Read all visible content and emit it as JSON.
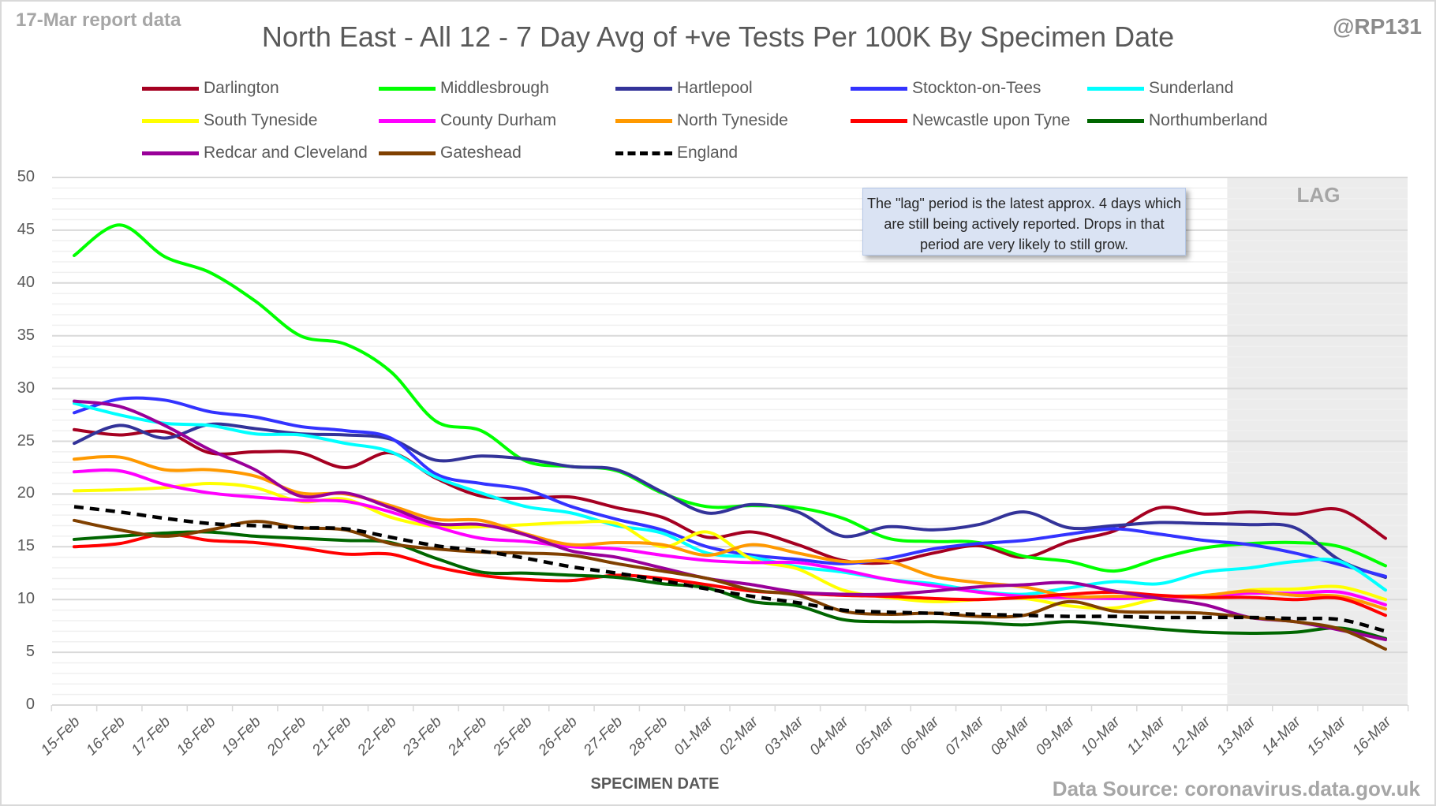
{
  "header": {
    "report_date": "17-Mar report data",
    "handle": "@RP131",
    "source": "Data Source: coronavirus.data.gov.uk"
  },
  "annotation": {
    "note": "The \"lag\" period is the latest approx. 4 days which are still being actively reported. Drops in that period are very likely to still grow.",
    "lag_label": "LAG",
    "lag_start": "13-Mar",
    "lag_end": "16-Mar"
  },
  "chart_data": {
    "type": "line",
    "title": "North East - All 12 - 7 Day Avg of +ve Tests Per 100K By Specimen Date",
    "xlabel": "SPECIMEN DATE",
    "ylabel": "",
    "ylim": [
      0,
      50
    ],
    "yticks": [
      "0",
      "5",
      "10",
      "15",
      "20",
      "25",
      "30",
      "35",
      "40",
      "45",
      "50"
    ],
    "grid": true,
    "legend_position": "top",
    "categories": [
      "15-Feb",
      "16-Feb",
      "17-Feb",
      "18-Feb",
      "19-Feb",
      "20-Feb",
      "21-Feb",
      "22-Feb",
      "23-Feb",
      "24-Feb",
      "25-Feb",
      "26-Feb",
      "27-Feb",
      "28-Feb",
      "01-Mar",
      "02-Mar",
      "03-Mar",
      "04-Mar",
      "05-Mar",
      "06-Mar",
      "07-Mar",
      "08-Mar",
      "09-Mar",
      "10-Mar",
      "11-Mar",
      "12-Mar",
      "13-Mar",
      "14-Mar",
      "15-Mar",
      "16-Mar"
    ],
    "series": [
      {
        "name": "Darlington",
        "color": "#a50021",
        "dashed": false,
        "values": [
          26.1,
          25.6,
          25.9,
          23.9,
          24.0,
          23.9,
          22.5,
          23.9,
          21.5,
          19.8,
          19.6,
          19.7,
          18.7,
          17.8,
          15.9,
          16.4,
          15.2,
          13.7,
          13.5,
          14.4,
          15.1,
          14.0,
          15.5,
          16.5,
          18.7,
          18.1,
          18.3,
          18.1,
          18.5,
          15.8
        ]
      },
      {
        "name": "Middlesbrough",
        "color": "#00ff00",
        "dashed": false,
        "values": [
          42.6,
          45.5,
          42.5,
          41.0,
          38.3,
          35.0,
          34.2,
          31.6,
          26.9,
          26.0,
          23.1,
          22.6,
          22.2,
          20.1,
          18.8,
          18.9,
          18.7,
          17.7,
          15.8,
          15.5,
          15.4,
          14.1,
          13.6,
          12.7,
          13.9,
          14.9,
          15.3,
          15.4,
          15.0,
          13.2
        ]
      },
      {
        "name": "Hartlepool",
        "color": "#333399",
        "dashed": false,
        "values": [
          24.8,
          26.5,
          25.3,
          26.6,
          26.2,
          25.7,
          25.6,
          25.2,
          23.2,
          23.6,
          23.3,
          22.6,
          22.3,
          20.2,
          18.2,
          19.0,
          18.3,
          16.0,
          16.9,
          16.6,
          17.1,
          18.3,
          16.8,
          17.0,
          17.3,
          17.2,
          17.1,
          16.8,
          13.7,
          12.1
        ]
      },
      {
        "name": "Stockton-on-Tees",
        "color": "#3333ff",
        "dashed": false,
        "values": [
          27.7,
          29.0,
          28.9,
          27.8,
          27.3,
          26.4,
          26.0,
          25.3,
          21.9,
          21.0,
          20.4,
          18.8,
          17.6,
          16.6,
          15.0,
          14.2,
          13.8,
          13.4,
          13.9,
          14.8,
          15.3,
          15.6,
          16.2,
          16.7,
          16.2,
          15.6,
          15.2,
          14.4,
          13.3,
          12.2
        ]
      },
      {
        "name": "Sunderland",
        "color": "#00ffff",
        "dashed": false,
        "values": [
          28.6,
          27.5,
          26.7,
          26.5,
          25.7,
          25.6,
          24.8,
          24.0,
          21.6,
          20.1,
          18.8,
          18.2,
          17.0,
          16.3,
          14.4,
          14.0,
          13.1,
          12.6,
          11.9,
          11.5,
          10.8,
          10.5,
          11.1,
          11.7,
          11.5,
          12.6,
          13.0,
          13.6,
          13.6,
          10.9
        ]
      },
      {
        "name": "South Tyneside",
        "color": "#ffff00",
        "dashed": false,
        "values": [
          20.3,
          20.4,
          20.6,
          21.0,
          20.6,
          19.3,
          19.5,
          17.8,
          16.9,
          16.9,
          17.1,
          17.3,
          17.2,
          15.0,
          16.4,
          13.8,
          12.9,
          10.9,
          10.2,
          9.8,
          10.0,
          10.1,
          9.4,
          9.2,
          10.1,
          10.3,
          10.9,
          11.0,
          11.2,
          10.0
        ]
      },
      {
        "name": "County Durham",
        "color": "#ff00ff",
        "dashed": false,
        "values": [
          22.1,
          22.2,
          20.9,
          20.1,
          19.7,
          19.4,
          19.3,
          18.3,
          16.9,
          15.8,
          15.5,
          15.0,
          14.8,
          14.2,
          13.7,
          13.5,
          13.5,
          12.8,
          11.9,
          11.3,
          10.7,
          10.3,
          10.2,
          10.1,
          10.2,
          10.3,
          10.6,
          10.6,
          10.7,
          9.5
        ]
      },
      {
        "name": "North Tyneside",
        "color": "#ff9900",
        "dashed": false,
        "values": [
          23.3,
          23.5,
          22.3,
          22.3,
          21.7,
          20.1,
          20.0,
          18.9,
          17.6,
          17.5,
          16.2,
          15.2,
          15.4,
          15.2,
          14.2,
          15.2,
          14.4,
          13.6,
          13.6,
          12.2,
          11.6,
          11.2,
          10.3,
          10.3,
          10.3,
          10.4,
          10.8,
          10.4,
          10.3,
          9.1
        ]
      },
      {
        "name": "Newcastle upon Tyne",
        "color": "#ff0000",
        "dashed": false,
        "values": [
          15.0,
          15.3,
          16.2,
          15.6,
          15.4,
          14.9,
          14.3,
          14.3,
          13.1,
          12.3,
          11.9,
          11.8,
          12.3,
          12.0,
          11.4,
          10.8,
          10.6,
          10.4,
          10.3,
          10.1,
          10.0,
          10.2,
          10.5,
          10.7,
          10.4,
          10.2,
          10.2,
          10.0,
          10.1,
          8.5
        ]
      },
      {
        "name": "Northumberland",
        "color": "#006600",
        "dashed": false,
        "values": [
          15.7,
          16.0,
          16.3,
          16.4,
          16.0,
          15.8,
          15.6,
          15.4,
          13.9,
          12.6,
          12.5,
          12.3,
          12.1,
          11.5,
          11.1,
          9.8,
          9.4,
          8.1,
          7.9,
          7.9,
          7.8,
          7.6,
          7.9,
          7.6,
          7.2,
          6.9,
          6.8,
          6.9,
          7.3,
          6.3
        ]
      },
      {
        "name": "Redcar and Cleveland",
        "color": "#990099",
        "dashed": false,
        "values": [
          28.8,
          28.3,
          26.5,
          24.2,
          22.3,
          19.8,
          20.1,
          18.7,
          17.2,
          17.1,
          16.1,
          14.6,
          14.0,
          13.0,
          12.0,
          11.4,
          10.7,
          10.5,
          10.5,
          10.8,
          11.2,
          11.4,
          11.6,
          10.8,
          10.1,
          9.5,
          8.3,
          7.9,
          7.1,
          6.2
        ]
      },
      {
        "name": "Gateshead",
        "color": "#804000",
        "dashed": false,
        "values": [
          17.5,
          16.6,
          16.0,
          16.6,
          17.4,
          16.8,
          16.6,
          15.3,
          14.8,
          14.5,
          14.4,
          14.2,
          13.4,
          12.7,
          12.0,
          10.9,
          10.4,
          8.9,
          8.6,
          8.7,
          8.4,
          8.5,
          9.8,
          8.9,
          8.8,
          8.7,
          8.3,
          7.9,
          7.2,
          5.3
        ]
      },
      {
        "name": "England",
        "color": "#000000",
        "dashed": true,
        "values": [
          18.8,
          18.3,
          17.7,
          17.2,
          17.0,
          16.8,
          16.7,
          15.9,
          15.1,
          14.6,
          13.9,
          13.1,
          12.5,
          11.8,
          11.0,
          10.3,
          9.7,
          9.0,
          8.8,
          8.7,
          8.6,
          8.5,
          8.4,
          8.4,
          8.3,
          8.3,
          8.3,
          8.2,
          8.1,
          7.0
        ]
      }
    ]
  }
}
